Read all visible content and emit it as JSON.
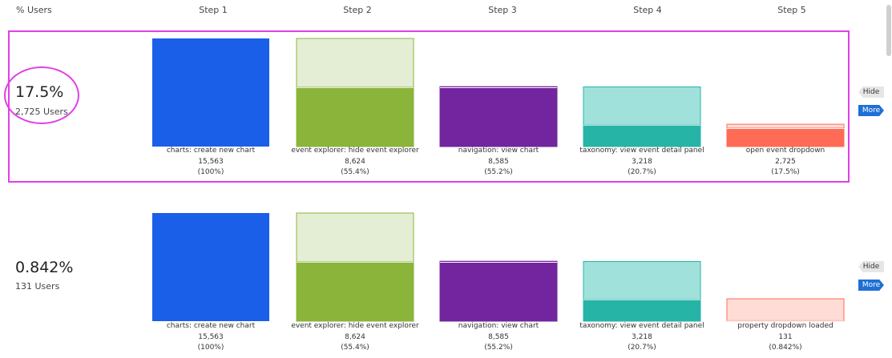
{
  "header": {
    "users_col": "% Users",
    "steps": [
      "Step 1",
      "Step 2",
      "Step 3",
      "Step 4",
      "Step 5"
    ]
  },
  "controls": {
    "hide_label": "Hide",
    "more_label": "More"
  },
  "colors": {
    "step1": "#1a5fe8",
    "step2": "#8bb43a",
    "step2_light": "#e4eed4",
    "step3": "#72259e",
    "step4": "#26b4a6",
    "step4_light": "#a1e1dc",
    "step5": "#ff6b55",
    "step5_light": "#ffddd6",
    "highlight": "#e040e8"
  },
  "rows": [
    {
      "conversion": "17.5%",
      "users": "2,725 Users",
      "steps": [
        {
          "label": "charts: create new chart",
          "count": "15,563",
          "pct": "(100%)"
        },
        {
          "label": "event explorer: hide event explorer",
          "count": "8,624",
          "pct": "(55.4%)"
        },
        {
          "label": "navigation: view chart",
          "count": "8,585",
          "pct": "(55.2%)"
        },
        {
          "label": "taxonomy: view event detail panel",
          "count": "3,218",
          "pct": "(20.7%)"
        },
        {
          "label": "open event dropdown",
          "count": "2,725",
          "pct": "(17.5%)"
        }
      ]
    },
    {
      "conversion": "0.842%",
      "users": "131 Users",
      "steps": [
        {
          "label": "charts: create new chart",
          "count": "15,563",
          "pct": "(100%)"
        },
        {
          "label": "event explorer: hide event explorer",
          "count": "8,624",
          "pct": "(55.4%)"
        },
        {
          "label": "navigation: view chart",
          "count": "8,585",
          "pct": "(55.2%)"
        },
        {
          "label": "taxonomy: view event detail panel",
          "count": "3,218",
          "pct": "(20.7%)"
        },
        {
          "label": "property dropdown loaded",
          "count": "131",
          "pct": "(0.842%)"
        }
      ]
    }
  ],
  "chart_data": [
    {
      "type": "bar",
      "categories": [
        "Step 1",
        "Step 2",
        "Step 3",
        "Step 4",
        "Step 5"
      ],
      "values": [
        15563,
        8624,
        8585,
        3218,
        2725
      ],
      "percent_of_first": [
        100,
        55.4,
        55.2,
        20.7,
        17.5
      ],
      "percent_of_previous": [
        100,
        55.4,
        99.5,
        37.5,
        84.7
      ],
      "ylim": [
        0,
        15563
      ]
    },
    {
      "type": "bar",
      "categories": [
        "Step 1",
        "Step 2",
        "Step 3",
        "Step 4",
        "Step 5"
      ],
      "values": [
        15563,
        8624,
        8585,
        3218,
        131
      ],
      "percent_of_first": [
        100,
        55.4,
        55.2,
        20.7,
        0.842
      ],
      "percent_of_previous": [
        100,
        55.4,
        99.5,
        37.5,
        4.1
      ],
      "ylim": [
        0,
        15563
      ]
    }
  ]
}
